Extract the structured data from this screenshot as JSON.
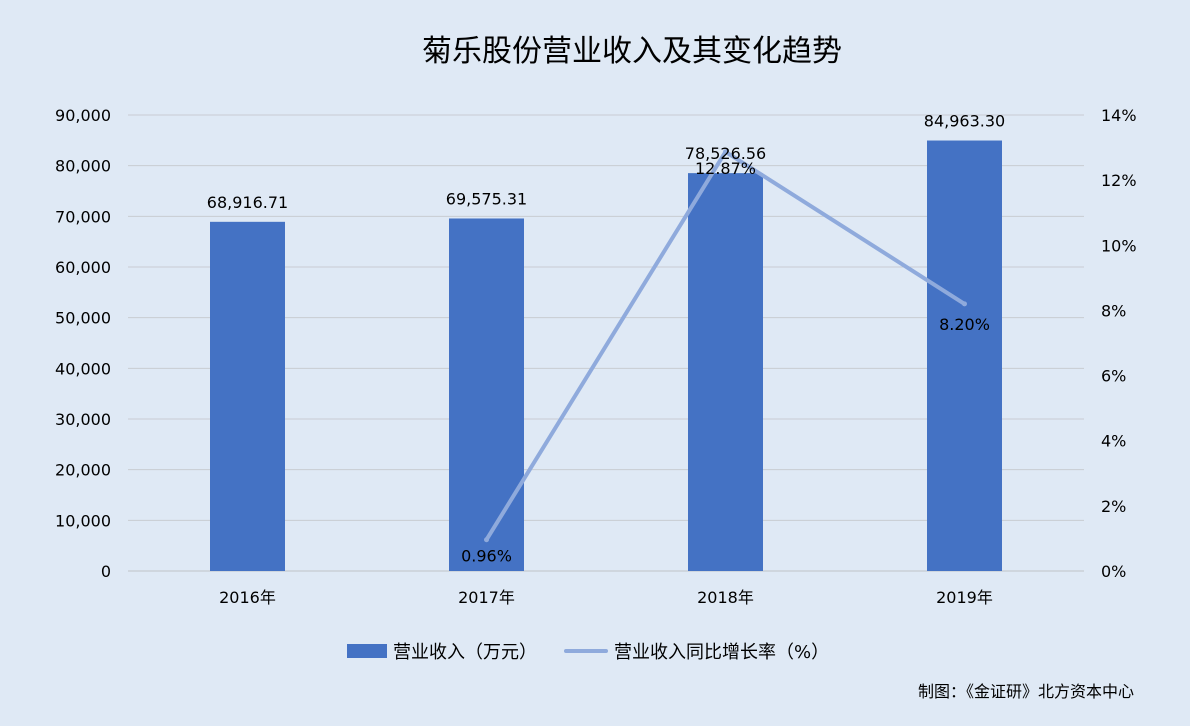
{
  "chart_data": {
    "type": "bar",
    "title": "菊乐股份营业收入及其变化趋势",
    "categories": [
      "2016年",
      "2017年",
      "2018年",
      "2019年"
    ],
    "series": [
      {
        "name": "营业收入（万元）",
        "type": "bar",
        "axis": "left",
        "values": [
          68916.71,
          69575.31,
          78526.56,
          84963.3
        ],
        "labels": [
          "68,916.71",
          "69,575.31",
          "78,526.56",
          "84,963.30"
        ]
      },
      {
        "name": "营业收入同比增长率（%）",
        "type": "line",
        "axis": "right",
        "values": [
          null,
          0.96,
          12.87,
          8.2
        ],
        "labels": [
          "",
          "0.96%",
          "12.87%",
          "8.20%"
        ]
      }
    ],
    "left_axis": {
      "ylim": [
        0,
        90000
      ],
      "ticks": [
        0,
        10000,
        20000,
        30000,
        40000,
        50000,
        60000,
        70000,
        80000,
        90000
      ],
      "tick_labels": [
        "0",
        "10,000",
        "20,000",
        "30,000",
        "40,000",
        "50,000",
        "60,000",
        "70,000",
        "80,000",
        "90,000"
      ]
    },
    "right_axis": {
      "ylim": [
        0,
        14
      ],
      "ticks": [
        0,
        2,
        4,
        6,
        8,
        10,
        12,
        14
      ],
      "tick_labels": [
        "0%",
        "2%",
        "4%",
        "6%",
        "8%",
        "10%",
        "12%",
        "14%"
      ]
    },
    "grid": true,
    "legend_position": "bottom",
    "colors": {
      "bar": "#4472c4",
      "line": "#8faadc",
      "grid": "#c8ccd2",
      "background": "#dfe9f5"
    }
  },
  "source_note": "制图：《金证研》北方资本中心"
}
